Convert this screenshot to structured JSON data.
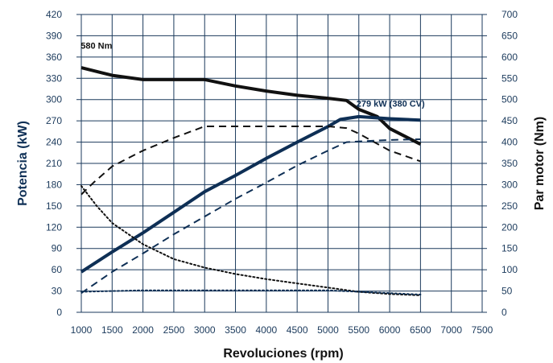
{
  "chart_data": {
    "type": "line",
    "xlabel": "Revoluciones (rpm)",
    "ylabel_left": "Potencia (kW)",
    "ylabel_right": "Par motor (Nm)",
    "x_ticks": [
      1000,
      1500,
      2000,
      2500,
      3000,
      3500,
      4000,
      4500,
      5000,
      5500,
      6000,
      6500,
      7000,
      7500
    ],
    "y_left_ticks": [
      0,
      30,
      60,
      90,
      120,
      150,
      180,
      210,
      240,
      270,
      300,
      330,
      360,
      390,
      420
    ],
    "y_right_ticks": [
      0,
      50,
      100,
      150,
      200,
      250,
      300,
      350,
      400,
      450,
      500,
      550,
      600,
      650,
      700
    ],
    "xlim": [
      1000,
      7500
    ],
    "ylim_left": [
      0,
      420
    ],
    "ylim_right": [
      0,
      700
    ],
    "grid": true,
    "colors": {
      "navy": "#0e2f55",
      "black": "#111111",
      "grid": "#1b3a5c"
    },
    "series": [
      {
        "axis": "right",
        "style": "solid",
        "color": "black",
        "width": 4,
        "x": [
          1000,
          1500,
          2000,
          2500,
          3000,
          3500,
          4000,
          4500,
          5000,
          5300,
          5500,
          5800,
          6000,
          6500
        ],
        "y": [
          575,
          557,
          547,
          547,
          547,
          532,
          520,
          510,
          503,
          498,
          477,
          460,
          432,
          395
        ]
      },
      {
        "axis": "left",
        "style": "solid",
        "color": "navy",
        "width": 4,
        "x": [
          1000,
          1500,
          2000,
          2500,
          3000,
          3500,
          4000,
          4500,
          5000,
          5200,
          5500,
          6000,
          6500
        ],
        "y": [
          57,
          85,
          112,
          141,
          170,
          193,
          217,
          240,
          262,
          272,
          276,
          273,
          271
        ]
      },
      {
        "axis": "right",
        "style": "dashed",
        "color": "black",
        "width": 2,
        "x": [
          1000,
          1200,
          1500,
          2000,
          2500,
          3000,
          3500,
          4000,
          4500,
          5000,
          5300,
          5500,
          6000,
          6500
        ],
        "y": [
          277,
          305,
          343,
          380,
          410,
          437,
          437,
          437,
          437,
          437,
          433,
          420,
          380,
          355
        ]
      },
      {
        "axis": "left",
        "style": "dashed",
        "color": "navy",
        "width": 2,
        "x": [
          1000,
          1500,
          2000,
          2500,
          3000,
          3500,
          4000,
          4500,
          5000,
          5300,
          5500,
          6000,
          6500
        ],
        "y": [
          27,
          57,
          83,
          110,
          135,
          160,
          183,
          207,
          228,
          240,
          241,
          243,
          244
        ]
      },
      {
        "axis": "right",
        "style": "dotted",
        "color": "black",
        "width": 2,
        "x": [
          1000,
          1250,
          1500,
          2000,
          2500,
          3000,
          3500,
          4000,
          4500,
          5000,
          5500,
          6000,
          6500
        ],
        "y": [
          297,
          250,
          210,
          160,
          125,
          105,
          90,
          78,
          68,
          58,
          48,
          43,
          40
        ]
      },
      {
        "axis": "left",
        "style": "dotted",
        "color": "navy",
        "width": 2,
        "x": [
          1000,
          2000,
          3000,
          4000,
          5000,
          5500,
          6000,
          6500
        ],
        "y": [
          29,
          31,
          31,
          31,
          31,
          29,
          27,
          25
        ]
      }
    ],
    "annotations": [
      {
        "text": "580 Nm",
        "x": 990,
        "y": 372,
        "color": "black"
      },
      {
        "text": "279 kW (380 CV)",
        "x": 5460,
        "y": 290,
        "color": "navy"
      }
    ]
  }
}
